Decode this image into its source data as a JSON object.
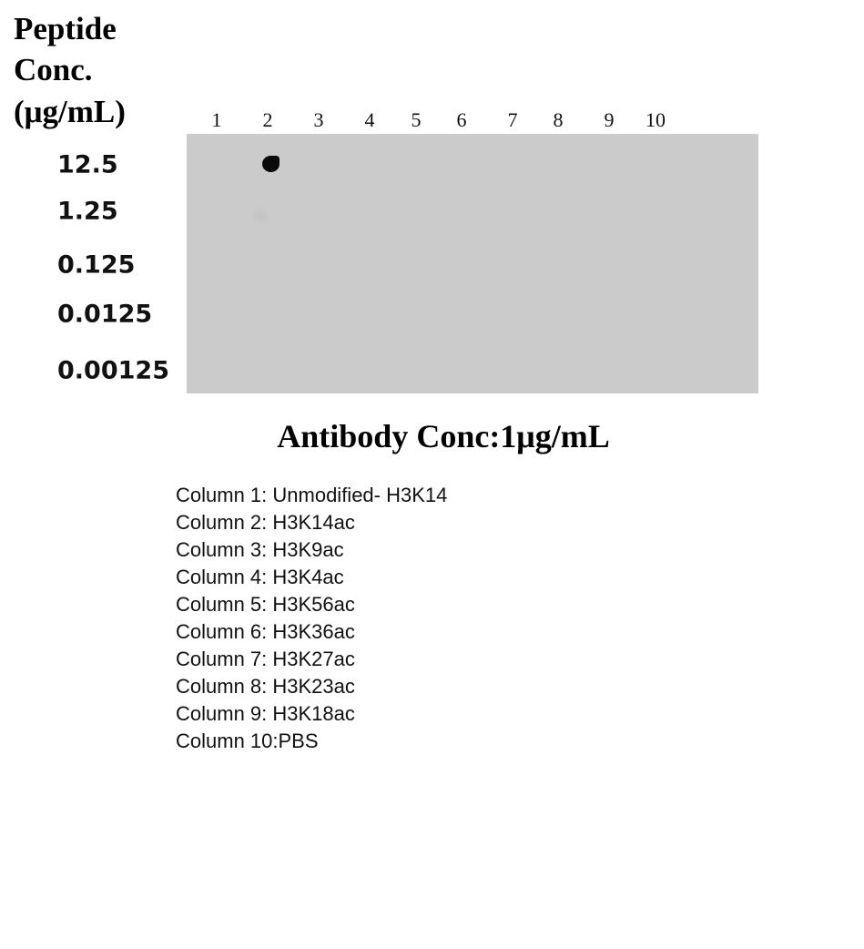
{
  "header": [
    "Peptide",
    "Conc.",
    "(μg/mL)"
  ],
  "columns": [
    "1",
    "2",
    "3",
    "4",
    "5",
    "6",
    "7",
    "8",
    "9",
    "10"
  ],
  "rows": [
    "12.5",
    "1.25",
    "0.125",
    "0.0125",
    "0.00125"
  ],
  "blot": {
    "background_color": "#cbcbcb",
    "signal": [
      {
        "column": "2",
        "row": "12.5",
        "intensity": "strong"
      },
      {
        "column": "2",
        "row": "1.25",
        "intensity": "very faint"
      }
    ]
  },
  "title": "Antibody Conc:1μg/mL",
  "legend": [
    "Column 1: Unmodified- H3K14",
    "Column 2: H3K14ac",
    "Column 3: H3K9ac",
    "Column 4: H3K4ac",
    "Column 5: H3K56ac",
    "Column 6: H3K36ac",
    "Column 7: H3K27ac",
    "Column 8: H3K23ac",
    "Column 9: H3K18ac",
    "Column 10:PBS"
  ]
}
